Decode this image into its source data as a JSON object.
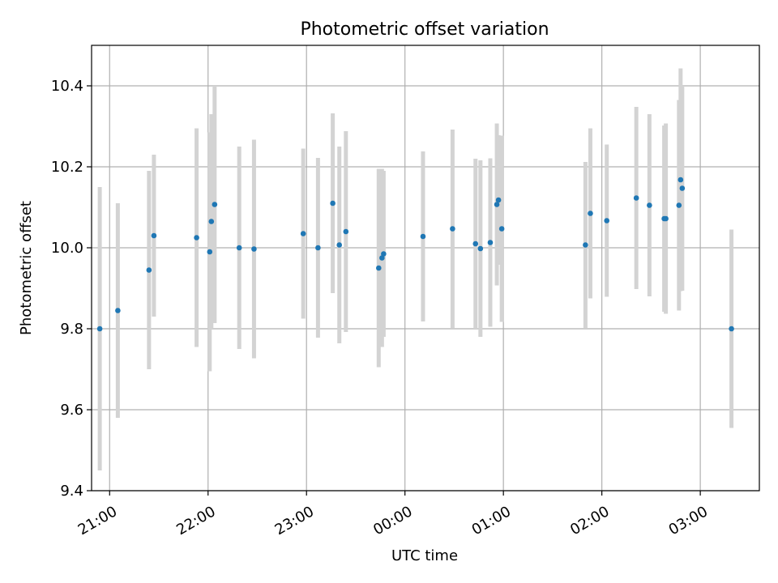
{
  "chart_data": {
    "type": "scatter",
    "title": "Photometric offset variation",
    "xlabel": "UTC time",
    "ylabel": "Photometric offset",
    "x_axis": "time (HH:MM UTC, evening to next morning)",
    "xlim": [
      "20:49",
      "03:36"
    ],
    "ylim": [
      9.4,
      10.5
    ],
    "x_ticks": [
      "21:00",
      "22:00",
      "23:00",
      "00:00",
      "01:00",
      "02:00",
      "03:00"
    ],
    "y_ticks": [
      "9.4",
      "9.6",
      "9.8",
      "10.0",
      "10.2",
      "10.4"
    ],
    "grid": true,
    "colors": {
      "points": "#1f77b4",
      "errorbars": "#d3d3d3",
      "grid": "#b0b0b0"
    },
    "points": [
      {
        "x": "20:54",
        "y": 9.8,
        "err": 0.35
      },
      {
        "x": "21:05",
        "y": 9.845,
        "err": 0.265
      },
      {
        "x": "21:24",
        "y": 9.945,
        "err": 0.245
      },
      {
        "x": "21:27",
        "y": 10.03,
        "err": 0.2
      },
      {
        "x": "21:53",
        "y": 10.025,
        "err": 0.27
      },
      {
        "x": "22:01",
        "y": 9.99,
        "err": 0.295
      },
      {
        "x": "22:02",
        "y": 10.065,
        "err": 0.265
      },
      {
        "x": "22:04",
        "y": 10.107,
        "err": 0.293
      },
      {
        "x": "22:19",
        "y": 10.0,
        "err": 0.25
      },
      {
        "x": "22:28",
        "y": 9.997,
        "err": 0.27
      },
      {
        "x": "22:58",
        "y": 10.035,
        "err": 0.21
      },
      {
        "x": "23:07",
        "y": 10.0,
        "err": 0.222
      },
      {
        "x": "23:16",
        "y": 10.11,
        "err": 0.222
      },
      {
        "x": "23:20",
        "y": 10.007,
        "err": 0.243
      },
      {
        "x": "23:24",
        "y": 10.04,
        "err": 0.248
      },
      {
        "x": "23:44",
        "y": 9.95,
        "err": 0.245
      },
      {
        "x": "23:46",
        "y": 9.975,
        "err": 0.22
      },
      {
        "x": "23:47",
        "y": 9.985,
        "err": 0.205
      },
      {
        "x": "00:11",
        "y": 10.028,
        "err": 0.21
      },
      {
        "x": "00:29",
        "y": 10.047,
        "err": 0.245
      },
      {
        "x": "00:43",
        "y": 10.01,
        "err": 0.21
      },
      {
        "x": "00:46",
        "y": 9.998,
        "err": 0.218
      },
      {
        "x": "00:52",
        "y": 10.013,
        "err": 0.208
      },
      {
        "x": "00:56",
        "y": 10.107,
        "err": 0.2
      },
      {
        "x": "00:57",
        "y": 10.118,
        "err": 0.16
      },
      {
        "x": "00:59",
        "y": 10.047,
        "err": 0.23
      },
      {
        "x": "01:50",
        "y": 10.007,
        "err": 0.205
      },
      {
        "x": "01:53",
        "y": 10.085,
        "err": 0.21
      },
      {
        "x": "02:03",
        "y": 10.067,
        "err": 0.188
      },
      {
        "x": "02:21",
        "y": 10.123,
        "err": 0.225
      },
      {
        "x": "02:29",
        "y": 10.105,
        "err": 0.225
      },
      {
        "x": "02:38",
        "y": 10.072,
        "err": 0.23
      },
      {
        "x": "02:39",
        "y": 10.072,
        "err": 0.235
      },
      {
        "x": "02:47",
        "y": 10.105,
        "err": 0.26
      },
      {
        "x": "02:48",
        "y": 10.168,
        "err": 0.275
      },
      {
        "x": "02:49",
        "y": 10.147,
        "err": 0.253
      },
      {
        "x": "03:19",
        "y": 9.8,
        "err": 0.245
      }
    ]
  }
}
